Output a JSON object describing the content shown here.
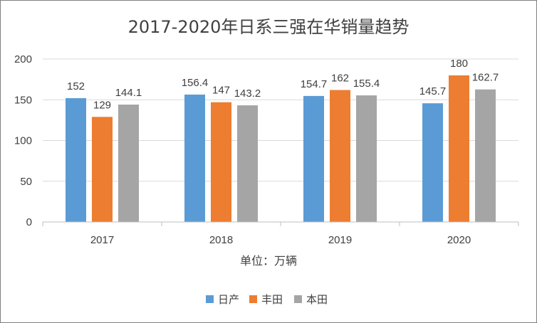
{
  "chart_data": {
    "type": "bar",
    "title": "2017-2020年日系三强在华销量趋势",
    "xlabel": "单位：万辆",
    "ylabel": "",
    "categories": [
      "2017",
      "2018",
      "2019",
      "2020"
    ],
    "series": [
      {
        "name": "日产",
        "color": "#5b9bd5",
        "values": [
          152,
          156.4,
          154.7,
          145.7
        ]
      },
      {
        "name": "丰田",
        "color": "#ed7d31",
        "values": [
          129,
          147,
          162,
          180
        ]
      },
      {
        "name": "本田",
        "color": "#a5a5a5",
        "values": [
          144.1,
          143.2,
          155.4,
          162.7
        ]
      }
    ],
    "ylim": [
      0,
      200
    ],
    "yticks": [
      0,
      50,
      100,
      150,
      200
    ],
    "grid": true,
    "legend_position": "bottom"
  }
}
